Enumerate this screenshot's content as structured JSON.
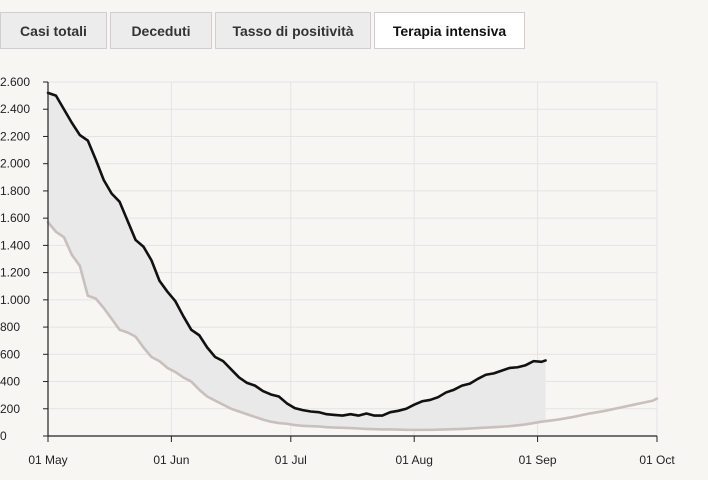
{
  "tabs": [
    {
      "label": "Casi totali",
      "active": false
    },
    {
      "label": "Deceduti",
      "active": false
    },
    {
      "label": "Tasso di positività",
      "active": false
    },
    {
      "label": "Terapia intensiva",
      "active": true
    }
  ],
  "colors": {
    "series_current": "#111111",
    "series_previous": "#c9c0bd",
    "band_fill": "#e9e9e9",
    "grid": "#e4e4e4"
  },
  "chart_data": {
    "type": "line",
    "title": "",
    "xlabel": "",
    "ylabel": "",
    "ylim": [
      0,
      2600
    ],
    "xlim": [
      "2021-05-01",
      "2021-10-01"
    ],
    "yticks": [
      0,
      200,
      400,
      600,
      800,
      1000,
      1200,
      1400,
      1600,
      1800,
      2000,
      2200,
      2400,
      2600
    ],
    "ytick_labels": [
      "0",
      "200",
      "400",
      "600",
      "800",
      "1.000",
      "1.200",
      "1.400",
      "1.600",
      "1.800",
      "2.000",
      "2.200",
      "2.400",
      "2.600"
    ],
    "xticks": [
      "2021-05-01",
      "2021-06-01",
      "2021-07-01",
      "2021-08-01",
      "2021-09-01",
      "2021-10-01"
    ],
    "xtick_labels": [
      "01 May",
      "01 Jun",
      "01 Jul",
      "01 Aug",
      "01 Sep",
      "01 Oct"
    ],
    "grid": true,
    "legend": false,
    "fill_between_series": true,
    "series": [
      {
        "values": [
          [
            "2021-05-01",
            2520
          ],
          [
            "2021-05-03",
            2500
          ],
          [
            "2021-05-05",
            2400
          ],
          [
            "2021-05-07",
            2300
          ],
          [
            "2021-05-09",
            2210
          ],
          [
            "2021-05-11",
            2170
          ],
          [
            "2021-05-13",
            2030
          ],
          [
            "2021-05-15",
            1880
          ],
          [
            "2021-05-17",
            1780
          ],
          [
            "2021-05-19",
            1720
          ],
          [
            "2021-05-21",
            1580
          ],
          [
            "2021-05-23",
            1440
          ],
          [
            "2021-05-25",
            1390
          ],
          [
            "2021-05-27",
            1290
          ],
          [
            "2021-05-29",
            1140
          ],
          [
            "2021-05-31",
            1060
          ],
          [
            "2021-06-02",
            990
          ],
          [
            "2021-06-04",
            880
          ],
          [
            "2021-06-06",
            780
          ],
          [
            "2021-06-08",
            740
          ],
          [
            "2021-06-10",
            650
          ],
          [
            "2021-06-12",
            580
          ],
          [
            "2021-06-14",
            550
          ],
          [
            "2021-06-16",
            490
          ],
          [
            "2021-06-18",
            430
          ],
          [
            "2021-06-20",
            390
          ],
          [
            "2021-06-22",
            370
          ],
          [
            "2021-06-24",
            330
          ],
          [
            "2021-06-26",
            305
          ],
          [
            "2021-06-28",
            290
          ],
          [
            "2021-06-30",
            240
          ],
          [
            "2021-07-02",
            205
          ],
          [
            "2021-07-04",
            190
          ],
          [
            "2021-07-06",
            180
          ],
          [
            "2021-07-08",
            175
          ],
          [
            "2021-07-10",
            160
          ],
          [
            "2021-07-12",
            155
          ],
          [
            "2021-07-14",
            150
          ],
          [
            "2021-07-16",
            160
          ],
          [
            "2021-07-18",
            150
          ],
          [
            "2021-07-20",
            165
          ],
          [
            "2021-07-22",
            150
          ],
          [
            "2021-07-24",
            150
          ],
          [
            "2021-07-26",
            175
          ],
          [
            "2021-07-28",
            185
          ],
          [
            "2021-07-30",
            200
          ],
          [
            "2021-08-01",
            230
          ],
          [
            "2021-08-03",
            255
          ],
          [
            "2021-08-05",
            265
          ],
          [
            "2021-08-07",
            285
          ],
          [
            "2021-08-09",
            320
          ],
          [
            "2021-08-11",
            340
          ],
          [
            "2021-08-13",
            370
          ],
          [
            "2021-08-15",
            385
          ],
          [
            "2021-08-17",
            420
          ],
          [
            "2021-08-19",
            450
          ],
          [
            "2021-08-21",
            460
          ],
          [
            "2021-08-23",
            480
          ],
          [
            "2021-08-25",
            500
          ],
          [
            "2021-08-27",
            505
          ],
          [
            "2021-08-29",
            520
          ],
          [
            "2021-08-31",
            550
          ],
          [
            "2021-09-02",
            545
          ],
          [
            "2021-09-03",
            555
          ]
        ]
      },
      {
        "values": [
          [
            "2021-05-01",
            1570
          ],
          [
            "2021-05-03",
            1500
          ],
          [
            "2021-05-05",
            1460
          ],
          [
            "2021-05-07",
            1330
          ],
          [
            "2021-05-09",
            1250
          ],
          [
            "2021-05-11",
            1030
          ],
          [
            "2021-05-13",
            1010
          ],
          [
            "2021-05-15",
            940
          ],
          [
            "2021-05-17",
            860
          ],
          [
            "2021-05-19",
            780
          ],
          [
            "2021-05-21",
            760
          ],
          [
            "2021-05-23",
            730
          ],
          [
            "2021-05-25",
            650
          ],
          [
            "2021-05-27",
            580
          ],
          [
            "2021-05-29",
            550
          ],
          [
            "2021-05-31",
            500
          ],
          [
            "2021-06-02",
            470
          ],
          [
            "2021-06-04",
            430
          ],
          [
            "2021-06-06",
            400
          ],
          [
            "2021-06-08",
            340
          ],
          [
            "2021-06-10",
            290
          ],
          [
            "2021-06-12",
            260
          ],
          [
            "2021-06-14",
            230
          ],
          [
            "2021-06-16",
            200
          ],
          [
            "2021-06-18",
            180
          ],
          [
            "2021-06-20",
            160
          ],
          [
            "2021-06-22",
            140
          ],
          [
            "2021-06-24",
            120
          ],
          [
            "2021-06-26",
            105
          ],
          [
            "2021-06-28",
            95
          ],
          [
            "2021-06-30",
            90
          ],
          [
            "2021-07-02",
            80
          ],
          [
            "2021-07-04",
            75
          ],
          [
            "2021-07-06",
            72
          ],
          [
            "2021-07-08",
            70
          ],
          [
            "2021-07-10",
            65
          ],
          [
            "2021-07-12",
            62
          ],
          [
            "2021-07-14",
            60
          ],
          [
            "2021-07-16",
            58
          ],
          [
            "2021-07-18",
            55
          ],
          [
            "2021-07-20",
            52
          ],
          [
            "2021-07-22",
            50
          ],
          [
            "2021-07-24",
            48
          ],
          [
            "2021-07-26",
            48
          ],
          [
            "2021-07-28",
            47
          ],
          [
            "2021-07-30",
            45
          ],
          [
            "2021-08-01",
            45
          ],
          [
            "2021-08-05",
            45
          ],
          [
            "2021-08-09",
            48
          ],
          [
            "2021-08-13",
            52
          ],
          [
            "2021-08-17",
            58
          ],
          [
            "2021-08-21",
            65
          ],
          [
            "2021-08-25",
            72
          ],
          [
            "2021-08-29",
            85
          ],
          [
            "2021-09-02",
            105
          ],
          [
            "2021-09-06",
            120
          ],
          [
            "2021-09-10",
            140
          ],
          [
            "2021-09-14",
            165
          ],
          [
            "2021-09-18",
            185
          ],
          [
            "2021-09-22",
            210
          ],
          [
            "2021-09-26",
            235
          ],
          [
            "2021-09-30",
            260
          ],
          [
            "2021-10-01",
            275
          ]
        ]
      }
    ]
  }
}
